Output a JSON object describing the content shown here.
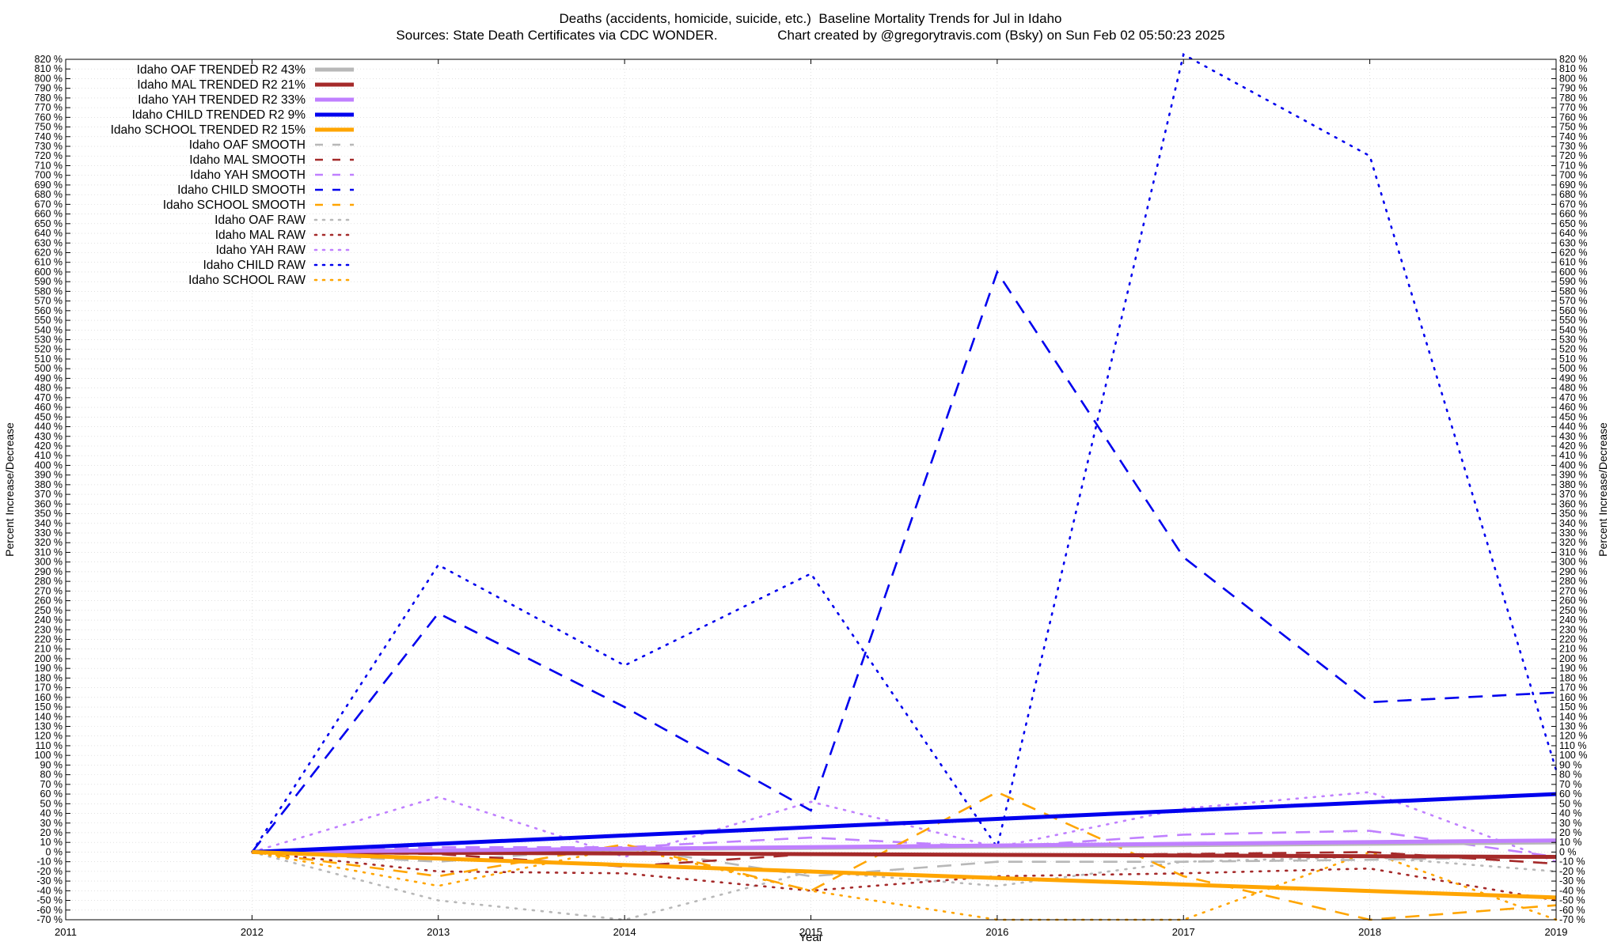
{
  "chart_data": {
    "type": "line",
    "title": "Deaths (accidents, homicide, suicide, etc.)  Baseline Mortality Trends for Jul in Idaho",
    "subtitle": "Sources: State Death Certificates via CDC WONDER.                Chart created by @gregorytravis.com (Bsky) on Sun Feb 02 05:50:23 2025",
    "xlabel": "Year",
    "ylabel": "Percent Increase/Decrease",
    "y2label": "Percent Increase/Decrease",
    "xlim": [
      2011,
      2019
    ],
    "ylim": [
      -70,
      820
    ],
    "ytick_step": 10,
    "xticks": [
      "2011",
      "2012",
      "2013",
      "2014",
      "2015",
      "2016",
      "2017",
      "2018",
      "2019"
    ],
    "grid": true,
    "legend_position": "top-left",
    "colors": {
      "oaf": "#b8b8b8",
      "mal": "#a52a2a",
      "yah": "#c080ff",
      "child": "#0000ee",
      "school": "#ffa500"
    },
    "series": [
      {
        "name": "Idaho OAF TRENDED R2  43%",
        "group": "oaf",
        "style": "trend",
        "x": [
          2012,
          2019
        ],
        "y": [
          0,
          10
        ]
      },
      {
        "name": "Idaho MAL TRENDED R2  21%",
        "group": "mal",
        "style": "trend",
        "x": [
          2012,
          2019
        ],
        "y": [
          0,
          -5
        ]
      },
      {
        "name": "Idaho YAH TRENDED R2  33%",
        "group": "yah",
        "style": "trend",
        "x": [
          2012,
          2019
        ],
        "y": [
          0,
          12
        ]
      },
      {
        "name": "Idaho CHILD TRENDED R2  9%",
        "group": "child",
        "style": "trend",
        "x": [
          2012,
          2019
        ],
        "y": [
          0,
          60
        ]
      },
      {
        "name": "Idaho SCHOOL TRENDED R2  15%",
        "group": "school",
        "style": "trend",
        "x": [
          2012,
          2019
        ],
        "y": [
          0,
          -47
        ]
      },
      {
        "name": "Idaho OAF SMOOTH",
        "group": "oaf",
        "style": "smooth",
        "x": [
          2012,
          2013,
          2014,
          2015,
          2016,
          2017,
          2018,
          2019
        ],
        "y": [
          0,
          -10,
          5,
          -25,
          -10,
          -10,
          -8,
          -5
        ]
      },
      {
        "name": "Idaho MAL SMOOTH",
        "group": "mal",
        "style": "smooth",
        "x": [
          2012,
          2013,
          2014,
          2015,
          2016,
          2017,
          2018,
          2019
        ],
        "y": [
          0,
          -2,
          -15,
          -2,
          -3,
          -2,
          0,
          -12
        ]
      },
      {
        "name": "Idaho YAH SMOOTH",
        "group": "yah",
        "style": "smooth",
        "x": [
          2012,
          2013,
          2014,
          2015,
          2016,
          2017,
          2018,
          2019
        ],
        "y": [
          0,
          5,
          5,
          15,
          5,
          18,
          22,
          -5
        ]
      },
      {
        "name": "Idaho CHILD SMOOTH",
        "group": "child",
        "style": "smooth",
        "x": [
          2012,
          2013,
          2014,
          2015,
          2016,
          2017,
          2018,
          2019
        ],
        "y": [
          0,
          247,
          150,
          43,
          600,
          305,
          155,
          165
        ]
      },
      {
        "name": "Idaho SCHOOL SMOOTH",
        "group": "school",
        "style": "smooth",
        "x": [
          2012,
          2013,
          2014,
          2015,
          2016,
          2017,
          2018,
          2019
        ],
        "y": [
          0,
          -25,
          8,
          -40,
          62,
          -25,
          -70,
          -55
        ]
      },
      {
        "name": "Idaho OAF RAW",
        "group": "oaf",
        "style": "raw",
        "x": [
          2012,
          2013,
          2014,
          2015,
          2016,
          2017,
          2018,
          2019
        ],
        "y": [
          0,
          -50,
          -70,
          -20,
          -35,
          -10,
          -5,
          -20
        ]
      },
      {
        "name": "Idaho MAL RAW",
        "group": "mal",
        "style": "raw",
        "x": [
          2012,
          2013,
          2014,
          2015,
          2016,
          2017,
          2018,
          2019
        ],
        "y": [
          0,
          -20,
          -22,
          -40,
          -25,
          -22,
          -17,
          -50
        ]
      },
      {
        "name": "Idaho YAH RAW",
        "group": "yah",
        "style": "raw",
        "x": [
          2012,
          2013,
          2014,
          2015,
          2016,
          2017,
          2018,
          2019
        ],
        "y": [
          0,
          57,
          -5,
          52,
          5,
          45,
          62,
          -10
        ]
      },
      {
        "name": "Idaho CHILD RAW",
        "group": "child",
        "style": "raw",
        "x": [
          2012,
          2013,
          2014,
          2015,
          2016,
          2017,
          2018,
          2019
        ],
        "y": [
          0,
          297,
          193,
          288,
          5,
          825,
          720,
          85
        ]
      },
      {
        "name": "Idaho SCHOOL RAW",
        "group": "school",
        "style": "raw",
        "x": [
          2012,
          2013,
          2014,
          2015,
          2016,
          2017,
          2018,
          2019
        ],
        "y": [
          0,
          -35,
          5,
          -40,
          -70,
          -70,
          0,
          -70
        ]
      }
    ]
  }
}
